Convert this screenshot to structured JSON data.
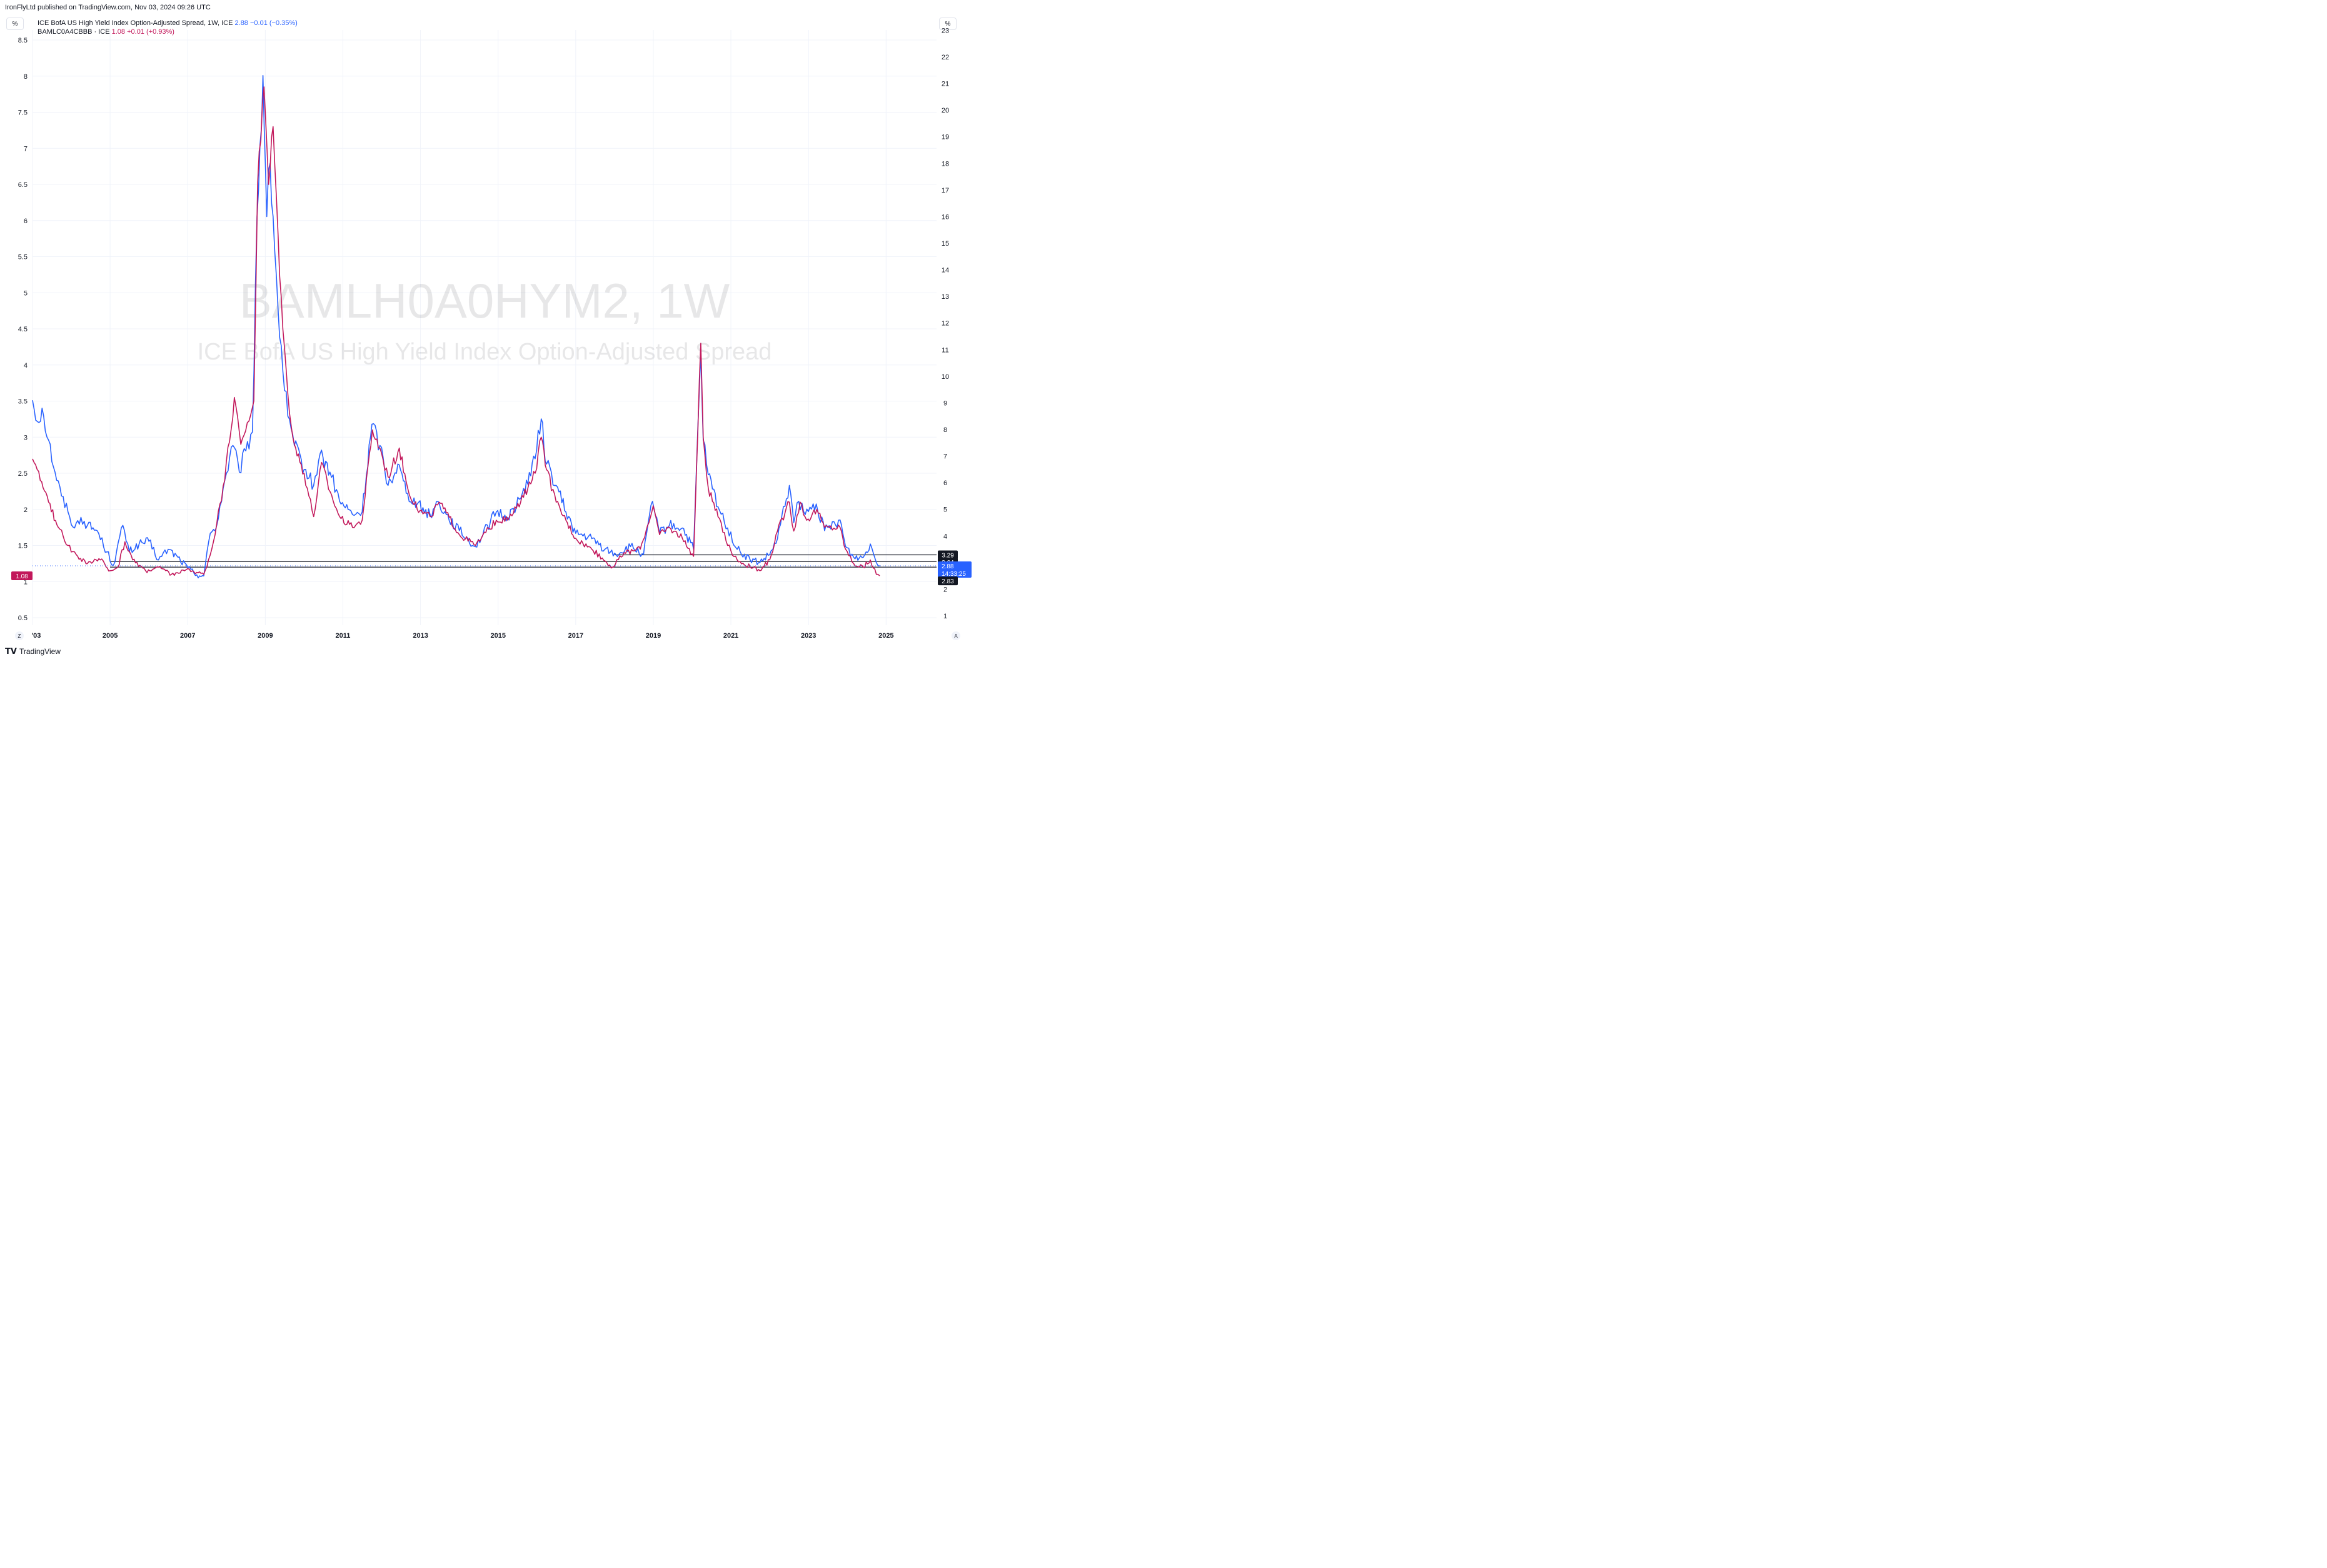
{
  "header": {
    "published": "IronFlyLtd published on TradingView.com, Nov 03, 2024 09:26 UTC",
    "unit_left": "%",
    "unit_right": "%"
  },
  "legend": {
    "series1_name": "ICE BofA US High Yield Index Option-Adjusted Spread, 1W, ICE",
    "series1_value": "2.88",
    "series1_change": "−0.01 (−0.35%)",
    "series2_name": "BAMLC0A4CBBB · ICE",
    "series2_value": "1.08",
    "series2_change": "+0.01 (+0.93%)"
  },
  "watermark": {
    "line1": "BAMLH0A0HYM2, 1W",
    "line2": "ICE BofA US High Yield Index Option-Adjusted Spread"
  },
  "footer": {
    "brand": "TradingView",
    "zoom_left": "Z",
    "zoom_right": "A"
  },
  "price_labels": {
    "left_current": "1.08",
    "right_3_29": "3.29",
    "right_3_04": "3.04",
    "right_current": "2.88",
    "right_countdown": "14:33:25",
    "right_2_83": "2.83"
  },
  "colors": {
    "hy_series": "#2962ff",
    "bbb_series": "#c2185b",
    "grid": "#f0f3fa",
    "hline": "#131722"
  },
  "chart_data": {
    "type": "line",
    "x_axis": {
      "type": "date",
      "ticks": [
        "'03",
        "2005",
        "2007",
        "2009",
        "2011",
        "2013",
        "2015",
        "2017",
        "2019",
        "2021",
        "2023",
        "2025"
      ]
    },
    "y_left": {
      "series": "BAMLC0A4CBBB",
      "ticks": [
        "8.5",
        "8",
        "7.5",
        "7",
        "6.5",
        "6",
        "5.5",
        "5",
        "4.5",
        "4",
        "3.5",
        "3",
        "2.5",
        "2",
        "1.5",
        "1",
        "0.5"
      ],
      "range": [
        0.5,
        8.5
      ]
    },
    "y_right": {
      "series": "BAMLH0A0HYM2",
      "ticks": [
        "23",
        "22",
        "21",
        "20",
        "19",
        "18",
        "17",
        "16",
        "15",
        "14",
        "13",
        "12",
        "11",
        "10",
        "9",
        "8",
        "7",
        "6",
        "5",
        "4",
        "3",
        "2",
        "1"
      ],
      "range": [
        1,
        23
      ]
    },
    "horizontal_lines_right_axis": [
      3.29,
      3.04,
      2.83
    ],
    "series": [
      {
        "name": "ICE BofA US High Yield Index Option-Adjusted Spread, 1W, ICE",
        "axis": "right",
        "points": [
          [
            "2003-01-01",
            9.1
          ],
          [
            "2003-02-15",
            8.3
          ],
          [
            "2003-04-01",
            8.8
          ],
          [
            "2003-06-01",
            7.6
          ],
          [
            "2003-08-01",
            6.4
          ],
          [
            "2003-10-01",
            5.5
          ],
          [
            "2003-12-01",
            4.9
          ],
          [
            "2004-02-01",
            4.3
          ],
          [
            "2004-04-01",
            4.7
          ],
          [
            "2004-06-01",
            4.4
          ],
          [
            "2004-09-01",
            4.2
          ],
          [
            "2004-12-01",
            3.4
          ],
          [
            "2005-02-01",
            2.9
          ],
          [
            "2005-05-01",
            4.4
          ],
          [
            "2005-07-01",
            3.4
          ],
          [
            "2005-10-01",
            3.7
          ],
          [
            "2006-01-01",
            3.8
          ],
          [
            "2006-04-01",
            3.1
          ],
          [
            "2006-07-01",
            3.5
          ],
          [
            "2006-10-01",
            3.2
          ],
          [
            "2007-01-01",
            2.8
          ],
          [
            "2007-03-01",
            2.6
          ],
          [
            "2007-06-01",
            2.5
          ],
          [
            "2007-08-01",
            4.1
          ],
          [
            "2007-10-01",
            4.4
          ],
          [
            "2007-12-01",
            5.8
          ],
          [
            "2008-03-01",
            7.4
          ],
          [
            "2008-05-01",
            6.4
          ],
          [
            "2008-07-01",
            7.2
          ],
          [
            "2008-09-01",
            7.9
          ],
          [
            "2008-10-15",
            16.0
          ],
          [
            "2008-12-10",
            21.3
          ],
          [
            "2009-01-15",
            16.0
          ],
          [
            "2009-02-15",
            18.0
          ],
          [
            "2009-03-15",
            16.0
          ],
          [
            "2009-05-01",
            12.5
          ],
          [
            "2009-06-15",
            10.2
          ],
          [
            "2009-08-01",
            8.5
          ],
          [
            "2009-10-01",
            7.4
          ],
          [
            "2010-01-01",
            6.5
          ],
          [
            "2010-04-01",
            5.9
          ],
          [
            "2010-06-01",
            7.1
          ],
          [
            "2010-09-01",
            6.4
          ],
          [
            "2010-12-01",
            5.3
          ],
          [
            "2011-04-01",
            4.8
          ],
          [
            "2011-07-01",
            4.9
          ],
          [
            "2011-10-01",
            8.2
          ],
          [
            "2011-12-15",
            7.4
          ],
          [
            "2012-03-01",
            5.9
          ],
          [
            "2012-06-01",
            6.7
          ],
          [
            "2012-09-01",
            5.6
          ],
          [
            "2012-12-01",
            5.2
          ],
          [
            "2013-04-01",
            4.8
          ],
          [
            "2013-06-15",
            5.3
          ],
          [
            "2013-09-01",
            4.8
          ],
          [
            "2014-01-01",
            4.2
          ],
          [
            "2014-06-01",
            3.6
          ],
          [
            "2014-12-15",
            4.9
          ],
          [
            "2015-04-01",
            4.7
          ],
          [
            "2015-08-01",
            5.4
          ],
          [
            "2015-12-15",
            6.9
          ],
          [
            "2016-02-11",
            8.4
          ],
          [
            "2016-04-01",
            6.7
          ],
          [
            "2016-07-01",
            5.9
          ],
          [
            "2016-10-01",
            4.9
          ],
          [
            "2017-01-01",
            4.1
          ],
          [
            "2017-06-01",
            3.9
          ],
          [
            "2017-10-01",
            3.5
          ],
          [
            "2018-01-15",
            3.3
          ],
          [
            "2018-06-01",
            3.6
          ],
          [
            "2018-10-01",
            3.3
          ],
          [
            "2018-12-24",
            5.3
          ],
          [
            "2019-03-01",
            4.1
          ],
          [
            "2019-06-01",
            4.4
          ],
          [
            "2019-10-01",
            4.3
          ],
          [
            "2020-01-15",
            3.5
          ],
          [
            "2020-03-23",
            10.9
          ],
          [
            "2020-04-15",
            7.6
          ],
          [
            "2020-06-01",
            6.3
          ],
          [
            "2020-09-01",
            5.1
          ],
          [
            "2020-12-01",
            4.3
          ],
          [
            "2021-03-01",
            3.5
          ],
          [
            "2021-07-01",
            3.1
          ],
          [
            "2021-10-01",
            3.0
          ],
          [
            "2022-01-01",
            3.3
          ],
          [
            "2022-03-15",
            3.9
          ],
          [
            "2022-07-05",
            5.9
          ],
          [
            "2022-08-15",
            4.5
          ],
          [
            "2022-10-01",
            5.3
          ],
          [
            "2022-12-01",
            4.8
          ],
          [
            "2023-03-15",
            5.2
          ],
          [
            "2023-06-01",
            4.2
          ],
          [
            "2023-10-25",
            4.6
          ],
          [
            "2023-12-15",
            3.6
          ],
          [
            "2024-03-01",
            3.2
          ],
          [
            "2024-06-01",
            3.2
          ],
          [
            "2024-08-05",
            3.7
          ],
          [
            "2024-10-01",
            3.0
          ],
          [
            "2024-11-01",
            2.88
          ]
        ]
      },
      {
        "name": "BAMLC0A4CBBB · ICE",
        "axis": "left",
        "points": [
          [
            "2003-01-01",
            2.7
          ],
          [
            "2003-03-15",
            2.4
          ],
          [
            "2003-06-01",
            2.1
          ],
          [
            "2003-09-01",
            1.75
          ],
          [
            "2003-12-01",
            1.5
          ],
          [
            "2004-03-01",
            1.35
          ],
          [
            "2004-06-01",
            1.25
          ],
          [
            "2004-10-01",
            1.3
          ],
          [
            "2005-01-01",
            1.15
          ],
          [
            "2005-03-15",
            1.2
          ],
          [
            "2005-05-20",
            1.55
          ],
          [
            "2005-08-01",
            1.3
          ],
          [
            "2005-12-01",
            1.15
          ],
          [
            "2006-04-01",
            1.2
          ],
          [
            "2006-08-01",
            1.1
          ],
          [
            "2006-12-01",
            1.15
          ],
          [
            "2007-02-15",
            1.15
          ],
          [
            "2007-06-01",
            1.1
          ],
          [
            "2007-08-15",
            1.45
          ],
          [
            "2007-10-01",
            1.8
          ],
          [
            "2007-12-15",
            2.4
          ],
          [
            "2008-03-15",
            3.55
          ],
          [
            "2008-05-15",
            2.9
          ],
          [
            "2008-07-15",
            3.2
          ],
          [
            "2008-09-15",
            3.5
          ],
          [
            "2008-10-20",
            6.5
          ],
          [
            "2008-12-20",
            7.85
          ],
          [
            "2009-02-01",
            6.5
          ],
          [
            "2009-03-15",
            7.3
          ],
          [
            "2009-05-01",
            5.8
          ],
          [
            "2009-06-15",
            4.5
          ],
          [
            "2009-08-01",
            3.6
          ],
          [
            "2009-10-01",
            2.9
          ],
          [
            "2010-01-01",
            2.5
          ],
          [
            "2010-04-01",
            1.9
          ],
          [
            "2010-06-15",
            2.65
          ],
          [
            "2010-09-01",
            2.25
          ],
          [
            "2010-12-01",
            1.9
          ],
          [
            "2011-04-01",
            1.75
          ],
          [
            "2011-07-01",
            1.85
          ],
          [
            "2011-10-05",
            3.1
          ],
          [
            "2011-12-15",
            2.85
          ],
          [
            "2012-03-01",
            2.45
          ],
          [
            "2012-06-15",
            2.85
          ],
          [
            "2012-09-01",
            2.3
          ],
          [
            "2012-12-01",
            2.0
          ],
          [
            "2013-04-01",
            1.9
          ],
          [
            "2013-06-25",
            2.1
          ],
          [
            "2013-09-01",
            1.95
          ],
          [
            "2014-01-01",
            1.65
          ],
          [
            "2014-06-01",
            1.5
          ],
          [
            "2014-12-15",
            1.85
          ],
          [
            "2015-04-01",
            1.85
          ],
          [
            "2015-08-01",
            2.1
          ],
          [
            "2015-12-15",
            2.5
          ],
          [
            "2016-02-11",
            3.0
          ],
          [
            "2016-04-01",
            2.55
          ],
          [
            "2016-07-01",
            2.1
          ],
          [
            "2016-10-01",
            1.85
          ],
          [
            "2017-01-01",
            1.6
          ],
          [
            "2017-06-01",
            1.45
          ],
          [
            "2017-12-15",
            1.2
          ],
          [
            "2018-04-01",
            1.4
          ],
          [
            "2018-09-01",
            1.45
          ],
          [
            "2018-12-31",
            2.05
          ],
          [
            "2019-03-01",
            1.65
          ],
          [
            "2019-06-01",
            1.75
          ],
          [
            "2019-10-01",
            1.6
          ],
          [
            "2020-01-15",
            1.35
          ],
          [
            "2020-03-23",
            4.3
          ],
          [
            "2020-04-15",
            3.0
          ],
          [
            "2020-06-01",
            2.3
          ],
          [
            "2020-09-01",
            1.9
          ],
          [
            "2020-12-01",
            1.5
          ],
          [
            "2021-03-01",
            1.3
          ],
          [
            "2021-07-01",
            1.2
          ],
          [
            "2021-10-01",
            1.15
          ],
          [
            "2022-01-01",
            1.3
          ],
          [
            "2022-03-15",
            1.7
          ],
          [
            "2022-07-05",
            2.1
          ],
          [
            "2022-08-15",
            1.7
          ],
          [
            "2022-10-15",
            2.1
          ],
          [
            "2022-12-15",
            1.85
          ],
          [
            "2023-03-20",
            2.0
          ],
          [
            "2023-06-01",
            1.75
          ],
          [
            "2023-10-25",
            1.75
          ],
          [
            "2023-12-15",
            1.45
          ],
          [
            "2024-03-01",
            1.25
          ],
          [
            "2024-06-01",
            1.2
          ],
          [
            "2024-08-05",
            1.3
          ],
          [
            "2024-10-01",
            1.1
          ],
          [
            "2024-11-01",
            1.08
          ]
        ]
      }
    ]
  }
}
